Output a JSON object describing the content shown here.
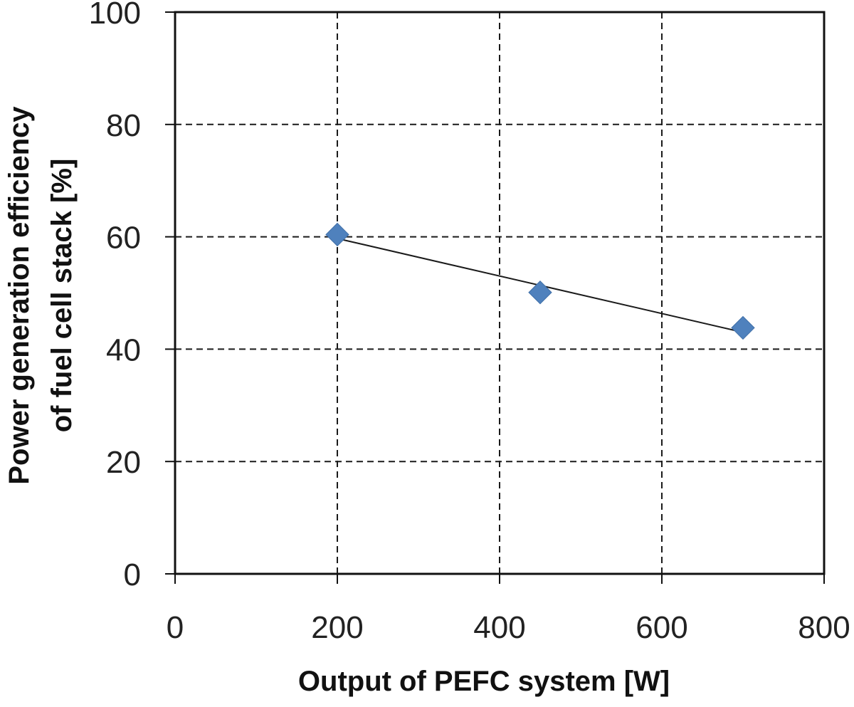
{
  "chart_data": {
    "type": "scatter",
    "title": "",
    "xlabel": "Output of PEFC system [W]",
    "ylabel_lines": [
      "Power generation efficiency",
      "of fuel cell stack [%]"
    ],
    "xlim": [
      0,
      800
    ],
    "ylim": [
      0,
      100
    ],
    "xticks": [
      0,
      200,
      400,
      600,
      800
    ],
    "yticks": [
      0,
      20,
      40,
      60,
      80,
      100
    ],
    "grid": true,
    "grid_style": "dashed",
    "legend": "none",
    "series": [
      {
        "points": [
          {
            "x": 200,
            "y": 60.4
          },
          {
            "x": 450,
            "y": 50.1
          },
          {
            "x": 700,
            "y": 43.8
          }
        ],
        "marker": "diamond",
        "color": "#4F81BD"
      }
    ],
    "trendline": {
      "type": "linear",
      "color": "#1a1a1a",
      "from": {
        "x": 200,
        "y": 59.7
      },
      "to": {
        "x": 700,
        "y": 43.0
      }
    }
  }
}
